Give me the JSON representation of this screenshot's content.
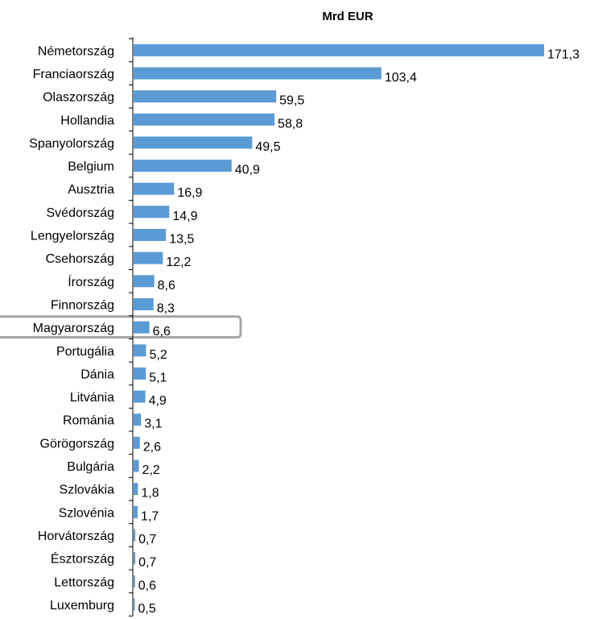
{
  "chart_data": {
    "type": "bar",
    "orientation": "horizontal",
    "title": "Mrd EUR",
    "categories": [
      "Németország",
      "Franciaország",
      "Olaszország",
      "Hollandia",
      "Spanyolország",
      "Belgium",
      "Ausztria",
      "Svédország",
      "Lengyelország",
      "Csehország",
      "Írország",
      "Finnország",
      "Magyarország",
      "Portugália",
      "Dánia",
      "Litvánia",
      "Románia",
      "Görögország",
      "Bulgária",
      "Szlovákia",
      "Szlovénia",
      "Horvátország",
      "Észtország",
      "Lettország",
      "Luxemburg"
    ],
    "values": [
      171.3,
      103.4,
      59.5,
      58.8,
      49.5,
      40.9,
      16.9,
      14.9,
      13.5,
      12.2,
      8.6,
      8.3,
      6.6,
      5.2,
      5.1,
      4.9,
      3.1,
      2.6,
      2.2,
      1.8,
      1.7,
      0.7,
      0.7,
      0.6,
      0.5
    ],
    "value_labels": [
      "171,3",
      "103,4",
      "59,5",
      "58,8",
      "49,5",
      "40,9",
      "16,9",
      "14,9",
      "13,5",
      "12,2",
      "8,6",
      "8,3",
      "6,6",
      "5,2",
      "5,1",
      "4,9",
      "3,1",
      "2,6",
      "2,2",
      "1,8",
      "1,7",
      "0,7",
      "0,7",
      "0,6",
      "0,5"
    ],
    "highlighted_category": "Magyarország",
    "xlim": [
      0,
      171.3
    ],
    "bar_color": "#5b9bd5",
    "highlight_box_color": "#a6a6a6",
    "grid": false,
    "legend": "none"
  }
}
